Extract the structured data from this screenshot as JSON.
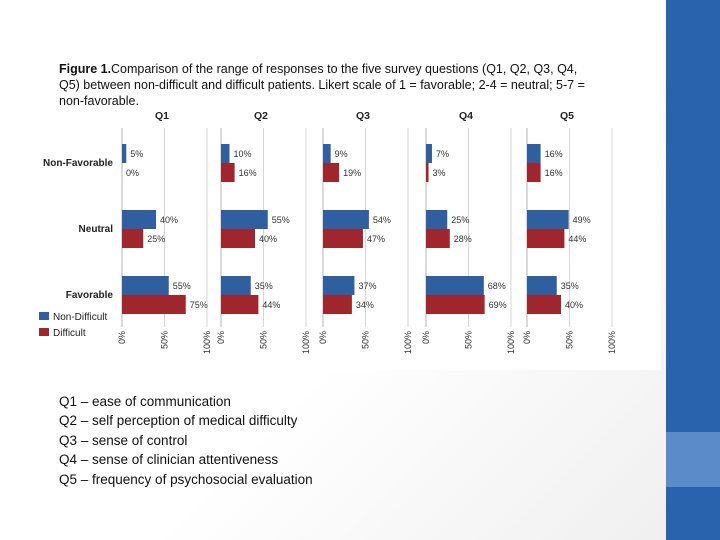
{
  "chart_data": {
    "type": "bar",
    "orientation": "horizontal",
    "title": "Figure 1.",
    "caption_lines": [
      "Comparison of the range of responses to the five survey questions (Q1, Q2, Q3, Q4,",
      "Q5) between non-difficult and difficult patients. Likert scale of 1 = favorable; 2-4 = neutral; 5-7 =",
      "non-favorable."
    ],
    "categories": [
      "Non-Favorable",
      "Neutral",
      "Favorable"
    ],
    "panels": [
      {
        "name": "Q1",
        "series": [
          {
            "name": "Non-Difficult",
            "values": [
              5,
              40,
              55
            ]
          },
          {
            "name": "Difficult",
            "values": [
              0,
              25,
              75
            ]
          }
        ]
      },
      {
        "name": "Q2",
        "series": [
          {
            "name": "Non-Difficult",
            "values": [
              10,
              55,
              35
            ]
          },
          {
            "name": "Difficult",
            "values": [
              16,
              40,
              44
            ]
          }
        ]
      },
      {
        "name": "Q3",
        "series": [
          {
            "name": "Non-Difficult",
            "values": [
              9,
              54,
              37
            ]
          },
          {
            "name": "Difficult",
            "values": [
              19,
              47,
              34
            ]
          }
        ]
      },
      {
        "name": "Q4",
        "series": [
          {
            "name": "Non-Difficult",
            "values": [
              7,
              25,
              68
            ]
          },
          {
            "name": "Difficult",
            "values": [
              3,
              28,
              69
            ]
          }
        ]
      },
      {
        "name": "Q5",
        "series": [
          {
            "name": "Non-Difficult",
            "values": [
              16,
              49,
              35
            ]
          },
          {
            "name": "Difficult",
            "values": [
              16,
              44,
              40
            ]
          }
        ]
      }
    ],
    "xlim": [
      0,
      100
    ],
    "xticks": [
      "0%",
      "50%",
      "100%"
    ],
    "legend": [
      {
        "name": "Non-Difficult",
        "color": "#2f5f9e"
      },
      {
        "name": "Difficult",
        "color": "#a0262e"
      }
    ],
    "legend_position": "bottom-left"
  },
  "notes": [
    "Q1 – ease of communication",
    "Q2 – self perception of medical difficulty",
    "Q3 – sense of control",
    "Q4 – sense of clinician attentiveness",
    "Q5 – frequency of psychosocial evaluation"
  ],
  "colors": {
    "sidebar": "#2a63ad",
    "sidebar_accent": "#5b8cc9"
  }
}
